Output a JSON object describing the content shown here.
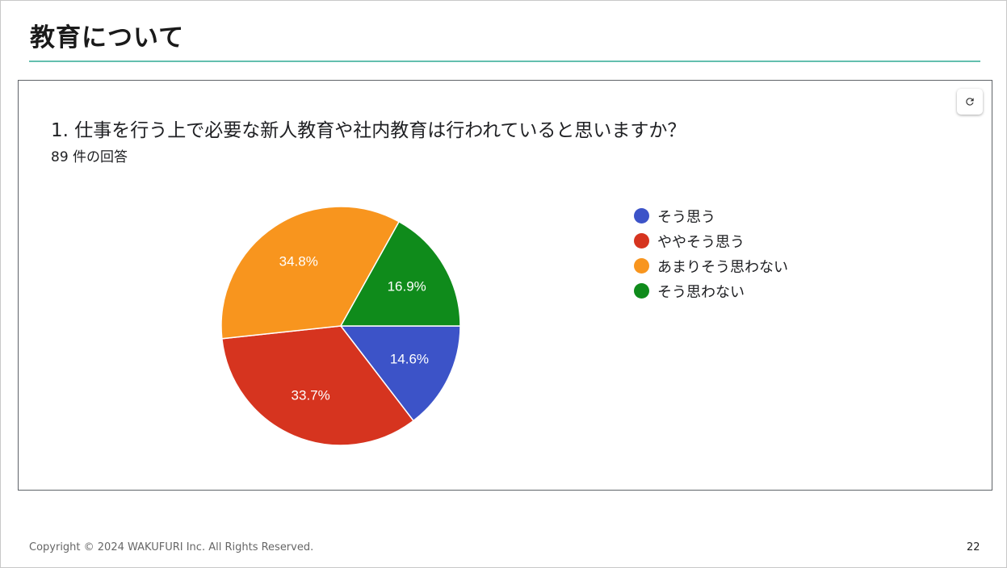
{
  "slide": {
    "title": "教育について",
    "copyright": "Copyright © 2024 WAKUFURI Inc. All Rights Reserved.",
    "page_number": "22",
    "accent_color": "#63bfae"
  },
  "card": {
    "question": "1. 仕事を行う上で必要な新人教育や社内教育は行われていると思いますか？",
    "responses": "89 件の回答",
    "refresh_icon": "refresh-icon"
  },
  "chart_data": {
    "type": "pie",
    "categories": [
      "そう思う",
      "ややそう思う",
      "あまりそう思わない",
      "そう思わない"
    ],
    "values": [
      14.6,
      33.7,
      34.8,
      16.9
    ],
    "labels": [
      "14.6%",
      "33.7%",
      "34.8%",
      "16.9%"
    ],
    "colors": [
      "#3c53c8",
      "#d6341f",
      "#f8951e",
      "#0f8b1b"
    ],
    "legend_position": "right"
  }
}
